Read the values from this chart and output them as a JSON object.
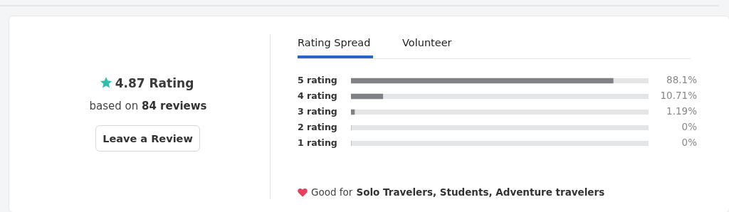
{
  "chart_data": {
    "type": "bar",
    "orientation": "horizontal",
    "categories": [
      "5 rating",
      "4 rating",
      "3 rating",
      "2 rating",
      "1 rating"
    ],
    "values": [
      88.1,
      10.71,
      1.19,
      0,
      0
    ],
    "value_labels": [
      "88.1%",
      "10.71%",
      "1.19%",
      "0%",
      "0%"
    ],
    "color": "#808184",
    "xlim": [
      0,
      100
    ],
    "tick_labels": "y",
    "annotations": [
      "4.87 Rating",
      "based on",
      "84 reviews",
      "Leave a Review",
      "Rating Spread",
      "Volunteer",
      "Good for",
      "Solo Travelers, Students, Adventure travelers"
    ]
  }
}
